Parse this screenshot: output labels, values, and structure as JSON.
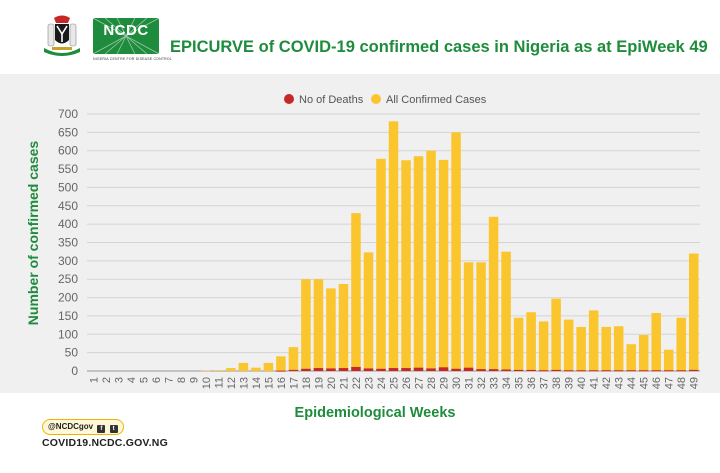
{
  "header": {
    "logo_text": "NCDC",
    "logo_subtext": "NIGERIA CENTRE FOR DISEASE CONTROL",
    "title": "EPICURVE of COVID-19 confirmed cases in Nigeria as at EpiWeek 49"
  },
  "footer": {
    "social_handle": "@NCDCgov",
    "url": "COVID19.NCDC.GOV.NG"
  },
  "colors": {
    "title": "#1e8c3c",
    "confirmed": "#fbc52d",
    "deaths": "#c62828",
    "plot_bg": "#f0f0f0",
    "grid": "#d4d4d4"
  },
  "chart_data": {
    "type": "bar",
    "title": "EPICURVE of COVID-19 confirmed cases in Nigeria as at EpiWeek 49",
    "xlabel": "Epidemiological Weeks",
    "ylabel": "Number of confirmed cases",
    "ylim": [
      0,
      700
    ],
    "yticks": [
      0,
      50,
      100,
      150,
      200,
      250,
      300,
      350,
      400,
      450,
      500,
      550,
      600,
      650,
      700
    ],
    "grid": true,
    "legend_position": "top-center",
    "categories": [
      "1",
      "2",
      "3",
      "4",
      "5",
      "6",
      "7",
      "8",
      "9",
      "10",
      "11",
      "12",
      "13",
      "14",
      "15",
      "16",
      "17",
      "18",
      "19",
      "20",
      "21",
      "22",
      "23",
      "24",
      "25",
      "26",
      "27",
      "28",
      "29",
      "30",
      "31",
      "32",
      "33",
      "34",
      "35",
      "36",
      "37",
      "38",
      "39",
      "40",
      "41",
      "42",
      "43",
      "44",
      "45",
      "46",
      "47",
      "48",
      "49"
    ],
    "series": [
      {
        "name": "All Confirmed Cases",
        "values": [
          0,
          0,
          0,
          0,
          0,
          0,
          0,
          0,
          0,
          1,
          2,
          8,
          22,
          9,
          22,
          40,
          65,
          250,
          250,
          225,
          237,
          430,
          323,
          578,
          680,
          574,
          585,
          600,
          575,
          650,
          296,
          296,
          420,
          325,
          145,
          160,
          135,
          197,
          140,
          120,
          165,
          120,
          122,
          73,
          98,
          158,
          58,
          145,
          320
        ]
      },
      {
        "name": "No of Deaths",
        "values": [
          0,
          0,
          0,
          0,
          0,
          0,
          0,
          0,
          0,
          0,
          0,
          0,
          0,
          0,
          0,
          1,
          3,
          6,
          8,
          7,
          8,
          11,
          7,
          6,
          8,
          8,
          9,
          7,
          10,
          6,
          9,
          5,
          5,
          4,
          3,
          3,
          2,
          3,
          2,
          2,
          2,
          2,
          2,
          2,
          2,
          2,
          2,
          2,
          3
        ]
      }
    ]
  }
}
